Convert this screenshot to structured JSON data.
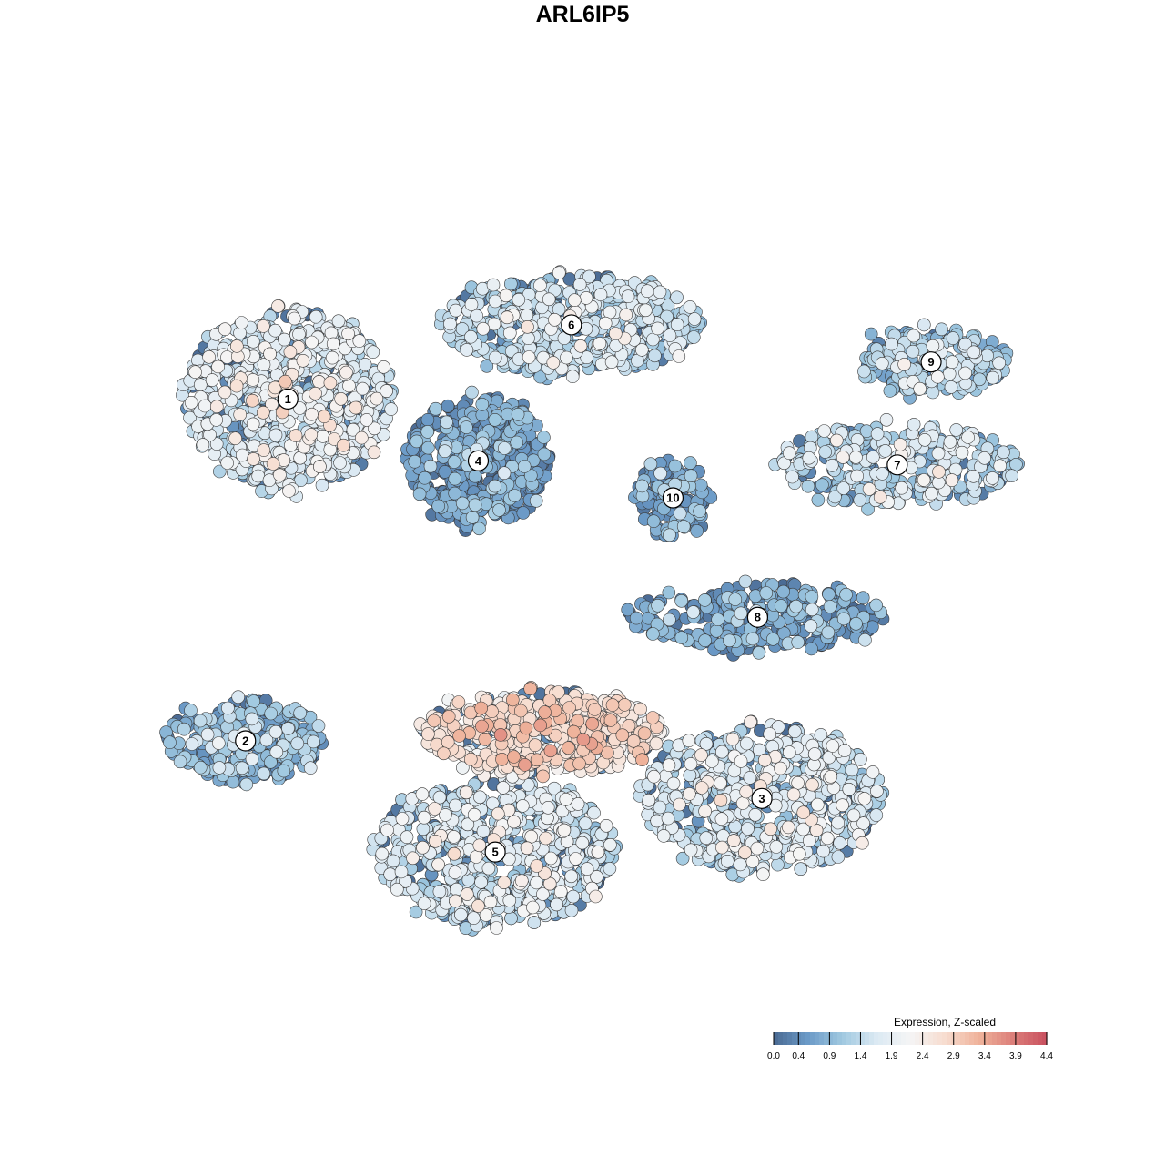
{
  "chart_data": {
    "type": "scatter",
    "title": "ARL6IP5",
    "xlabel": "",
    "ylabel": "",
    "grid": false,
    "axes_visible": false,
    "xlim": [
      0,
      100
    ],
    "ylim": [
      0,
      100
    ],
    "color_scale": {
      "title": "Expression, Z-scaled",
      "min": 0.0,
      "max": 4.4,
      "ticks": [
        0.0,
        0.4,
        0.9,
        1.4,
        1.9,
        2.4,
        2.9,
        3.4,
        3.9,
        4.4
      ],
      "tick_labels": [
        "0.0",
        "0.4",
        "0.9",
        "1.4",
        "1.9",
        "2.4",
        "2.9",
        "3.4",
        "3.9",
        "4.4"
      ],
      "colors": [
        "#4a6a93",
        "#6b9ac7",
        "#9fc8e0",
        "#dbe9f3",
        "#f5f5f5",
        "#f7ddd0",
        "#efb39b",
        "#dc7f7a",
        "#c9505f"
      ],
      "legend_placement": "bottom-right"
    },
    "clusters": [
      {
        "label": "1",
        "x": 12.5,
        "y": 72.0,
        "rx": 12,
        "ry": 11,
        "mean_expr": 1.7,
        "n": 900
      },
      {
        "label": "2",
        "x": 7.5,
        "y": 30.5,
        "rx": 9,
        "ry": 5,
        "mean_expr": 0.9,
        "n": 280
      },
      {
        "label": "3",
        "x": 68.5,
        "y": 23.5,
        "rx": 14,
        "ry": 9,
        "mean_expr": 1.6,
        "n": 800
      },
      {
        "label": "4",
        "x": 35.0,
        "y": 64.5,
        "rx": 8,
        "ry": 8,
        "mean_expr": 0.6,
        "n": 480
      },
      {
        "label": "5",
        "x": 37.0,
        "y": 17.0,
        "rx": 14,
        "ry": 9,
        "mean_expr": 1.6,
        "n": 850
      },
      {
        "label": "6",
        "x": 46.0,
        "y": 81.0,
        "rx": 15,
        "ry": 6,
        "mean_expr": 1.4,
        "n": 620
      },
      {
        "label": "7",
        "x": 84.5,
        "y": 64.0,
        "rx": 14,
        "ry": 5,
        "mean_expr": 1.5,
        "n": 320
      },
      {
        "label": "8",
        "x": 68.0,
        "y": 45.5,
        "rx": 15,
        "ry": 4,
        "mean_expr": 0.7,
        "n": 300
      },
      {
        "label": "9",
        "x": 88.5,
        "y": 76.5,
        "rx": 9,
        "ry": 4,
        "mean_expr": 1.2,
        "n": 220
      },
      {
        "label": "10",
        "x": 58.0,
        "y": 60.0,
        "rx": 4,
        "ry": 5,
        "mean_expr": 0.8,
        "n": 120
      },
      {
        "label": "",
        "x": 42.5,
        "y": 31.5,
        "rx": 14,
        "ry": 5,
        "mean_expr": 2.5,
        "n": 600
      }
    ]
  }
}
